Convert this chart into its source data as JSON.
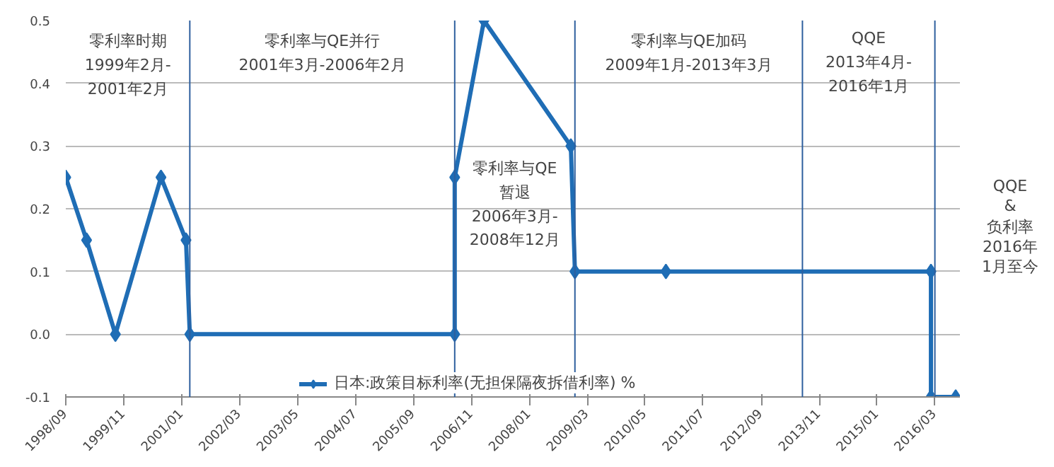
{
  "chart_data": {
    "type": "line",
    "x": [
      "1998-09",
      "1999-02",
      "1999-09",
      "2000-08",
      "2001-02",
      "2001-03",
      "2006-07",
      "2006-07",
      "2007-02",
      "2008-11",
      "2008-12",
      "2010-10",
      "2016-02",
      "2016-02",
      "2016-08"
    ],
    "series": [
      {
        "name": "日本:政策目标利率(无担保隔夜拆借利率) %",
        "color": "#1f6db5",
        "values": [
          0.25,
          0.15,
          0,
          0.25,
          0.15,
          0,
          0,
          0.25,
          0.5,
          0.3,
          0.1,
          0.1,
          0.1,
          -0.1,
          -0.1
        ]
      }
    ],
    "xlim": [
      "1998-09",
      "2016-09"
    ],
    "xticks": [
      {
        "value": "1998-09",
        "label": "1998/09"
      },
      {
        "value": "1999-11",
        "label": "1999/11"
      },
      {
        "value": "2001-01",
        "label": "2001/01"
      },
      {
        "value": "2002-03",
        "label": "2002/03"
      },
      {
        "value": "2003-05",
        "label": "2003/05"
      },
      {
        "value": "2004-07",
        "label": "2004/07"
      },
      {
        "value": "2005-09",
        "label": "2005/09"
      },
      {
        "value": "2006-11",
        "label": "2006/11"
      },
      {
        "value": "2008-01",
        "label": "2008/01"
      },
      {
        "value": "2009-03",
        "label": "2009/03"
      },
      {
        "value": "2010-05",
        "label": "2010/05"
      },
      {
        "value": "2011-07",
        "label": "2011/07"
      },
      {
        "value": "2012-09",
        "label": "2012/09"
      },
      {
        "value": "2013-11",
        "label": "2013/11"
      },
      {
        "value": "2015-01",
        "label": "2015/01"
      },
      {
        "value": "2016-03",
        "label": "2016/03"
      }
    ],
    "ylim": [
      -0.1,
      0.5
    ],
    "yticks": [
      {
        "value": -0.1,
        "label": "-0.1"
      },
      {
        "value": 0,
        "label": "0.0"
      },
      {
        "value": 0.1,
        "label": "0.1"
      },
      {
        "value": 0.2,
        "label": "0.2"
      },
      {
        "value": 0.3,
        "label": "0.3"
      },
      {
        "value": 0.4,
        "label": "0.4"
      },
      {
        "value": 0.5,
        "label": "0.5"
      }
    ],
    "ref_lines": [
      {
        "axis": "x",
        "value": "2001-03",
        "color": "#2e5f9e"
      },
      {
        "axis": "x",
        "value": "2006-07",
        "color": "#2e5f9e"
      },
      {
        "axis": "x",
        "value": "2008-12",
        "color": "#2e5f9e"
      },
      {
        "axis": "x",
        "value": "2013-07",
        "color": "#2e5f9e"
      },
      {
        "axis": "x",
        "value": "2016-03",
        "color": "#2e5f9e"
      }
    ],
    "annotations": [
      "零利率时期\n1999年2月-\n2001年2月",
      "零利率与QE并行\n2001年3月-2006年2月",
      "零利率与QE\n暂退\n2006年3月-\n2008年12月",
      "零利率与QE加码\n2009年1月-2013年3月",
      "QQE\n2013年4月-\n2016年1月",
      "QQE\n&\n负利率2016年1月至今"
    ],
    "grid": "y",
    "legend": "bottom",
    "marker": "diamond",
    "line_style": "solid"
  }
}
